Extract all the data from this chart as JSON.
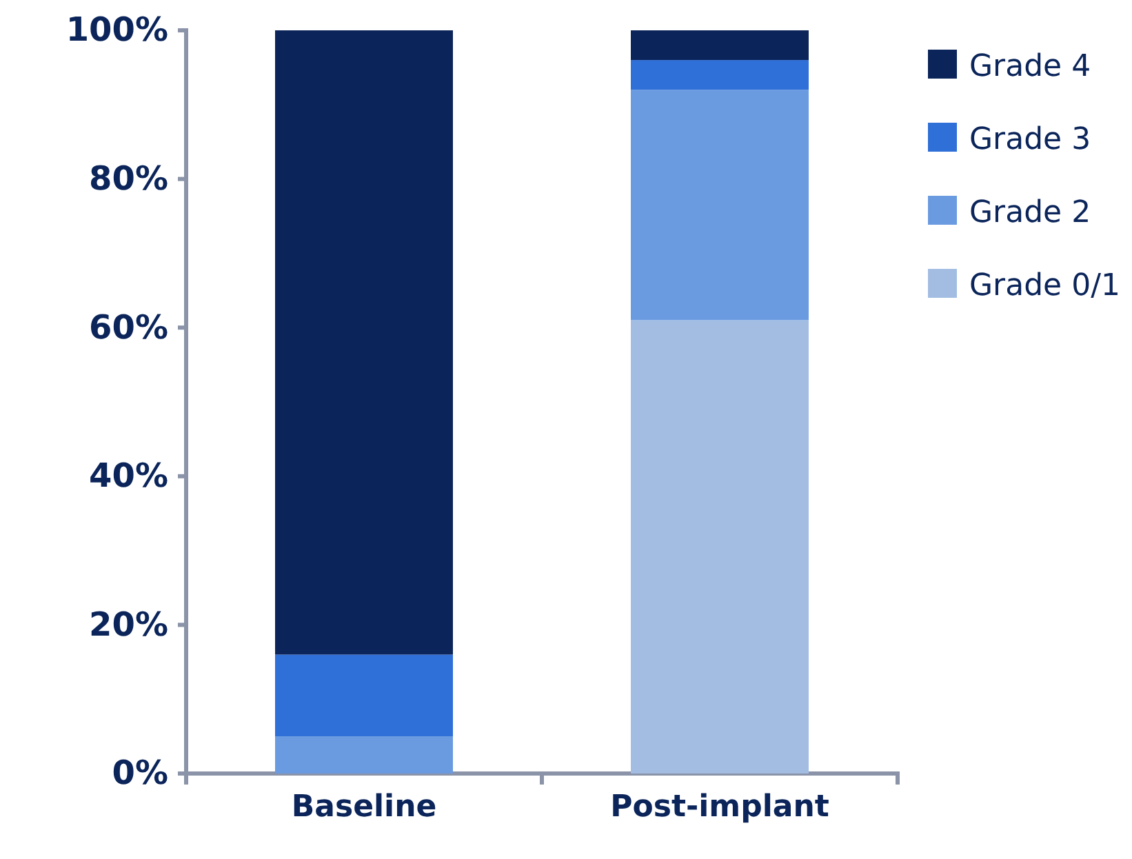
{
  "chart_data": {
    "type": "bar",
    "stacked": true,
    "categories": [
      "Baseline",
      "Post-implant"
    ],
    "series": [
      {
        "name": "Grade 0/1",
        "color": "#a3bde2",
        "values": [
          0,
          61
        ]
      },
      {
        "name": "Grade 2",
        "color": "#6a9be0",
        "values": [
          5,
          31
        ]
      },
      {
        "name": "Grade 3",
        "color": "#2f6fd8",
        "values": [
          11,
          4
        ]
      },
      {
        "name": "Grade 4",
        "color": "#0b255a",
        "values": [
          84,
          4
        ]
      }
    ],
    "ylim": [
      0,
      100
    ],
    "yticks": [
      {
        "value": 0,
        "label": "0%"
      },
      {
        "value": 20,
        "label": "20%"
      },
      {
        "value": 40,
        "label": "40%"
      },
      {
        "value": 60,
        "label": "60%"
      },
      {
        "value": 80,
        "label": "80%"
      },
      {
        "value": 100,
        "label": "100%"
      }
    ],
    "grid": false,
    "legend": "top right"
  }
}
